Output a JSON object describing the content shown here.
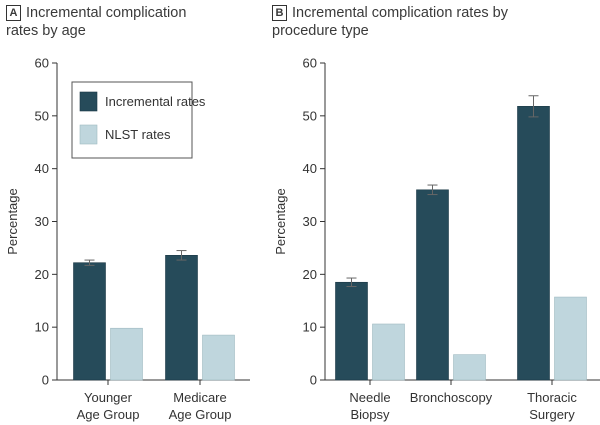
{
  "colors": {
    "incremental": "#264b5a",
    "nlst": "#bfd6dd",
    "axis": "#333333",
    "error": "#666666"
  },
  "chart_data": [
    {
      "panel": "A",
      "type": "bar",
      "title_lines": [
        "Incremental complication",
        "rates by age"
      ],
      "ylabel": "Percentage",
      "ylim": [
        0,
        60
      ],
      "yticks": [
        0,
        10,
        20,
        30,
        40,
        50,
        60
      ],
      "categories": [
        {
          "lines": [
            "Younger",
            "Age Group"
          ]
        },
        {
          "lines": [
            "Medicare",
            "Age Group"
          ]
        }
      ],
      "series": [
        {
          "name": "Incremental rates",
          "color_key": "incremental",
          "values": [
            22.2,
            23.6
          ],
          "errors": [
            0.5,
            0.9
          ]
        },
        {
          "name": "NLST rates",
          "color_key": "nlst",
          "values": [
            9.8,
            8.5
          ],
          "errors": [
            null,
            null
          ]
        }
      ],
      "legend": {
        "position": "top-right",
        "entries": [
          "Incremental rates",
          "NLST rates"
        ]
      }
    },
    {
      "panel": "B",
      "type": "bar",
      "title_lines": [
        "Incremental complication rates by",
        "procedure type"
      ],
      "ylabel": "Percentage",
      "ylim": [
        0,
        60
      ],
      "yticks": [
        0,
        10,
        20,
        30,
        40,
        50,
        60
      ],
      "categories": [
        {
          "lines": [
            "Needle",
            "Biopsy"
          ]
        },
        {
          "lines": [
            "Bronchoscopy"
          ]
        },
        {
          "lines": [
            "Thoracic",
            "Surgery"
          ]
        }
      ],
      "series": [
        {
          "name": "Incremental rates",
          "color_key": "incremental",
          "values": [
            18.5,
            36.0,
            51.8
          ],
          "errors": [
            0.8,
            0.9,
            2.0
          ]
        },
        {
          "name": "NLST rates",
          "color_key": "nlst",
          "values": [
            10.6,
            4.8,
            15.7
          ],
          "errors": [
            null,
            null,
            null
          ]
        }
      ]
    }
  ]
}
